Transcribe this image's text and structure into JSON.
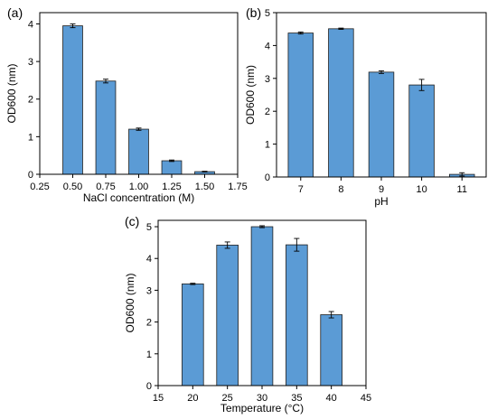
{
  "chart_data": [
    {
      "id": "a",
      "panel_label": "(a)",
      "type": "bar",
      "xlabel": "NaCl concentration (M)",
      "ylabel": "OD600 (nm)",
      "xlim": [
        0.25,
        1.75
      ],
      "ylim": [
        0,
        4.3
      ],
      "xticks": [
        "0.25",
        "0.50",
        "0.75",
        "1.00",
        "1.25",
        "1.50",
        "1.75"
      ],
      "yticks": [
        "0",
        "1",
        "2",
        "3",
        "4"
      ],
      "x": [
        0.5,
        0.75,
        1.0,
        1.25,
        1.5
      ],
      "values": [
        3.95,
        2.48,
        1.2,
        0.36,
        0.07
      ],
      "errors": [
        0.05,
        0.05,
        0.03,
        0.02,
        0.01
      ],
      "bar_width": 0.15,
      "bar_color": "#5b9bd5"
    },
    {
      "id": "b",
      "panel_label": "(b)",
      "type": "bar",
      "xlabel": "pH",
      "ylabel": "OD600 (nm)",
      "xlim": [
        6.4,
        11.6
      ],
      "ylim": [
        0,
        5
      ],
      "xticks": [
        "7",
        "8",
        "9",
        "10",
        "11"
      ],
      "yticks": [
        "0",
        "1",
        "2",
        "3",
        "4",
        "5"
      ],
      "x": [
        7,
        8,
        9,
        10,
        11
      ],
      "values": [
        4.38,
        4.51,
        3.19,
        2.8,
        0.08
      ],
      "errors": [
        0.03,
        0.02,
        0.04,
        0.17,
        0.05
      ],
      "bar_width": 0.62,
      "bar_color": "#5b9bd5"
    },
    {
      "id": "c",
      "panel_label": "(c)",
      "type": "bar",
      "xlabel": "Temperature (°C)",
      "ylabel": "OD600 (nm)",
      "xlim": [
        15,
        45
      ],
      "ylim": [
        0,
        5.2
      ],
      "xticks": [
        "15",
        "20",
        "25",
        "30",
        "35",
        "40",
        "45"
      ],
      "yticks": [
        "0",
        "1",
        "2",
        "3",
        "4",
        "5"
      ],
      "x": [
        20,
        25,
        30,
        35,
        40
      ],
      "values": [
        3.2,
        4.42,
        5.0,
        4.43,
        2.23
      ],
      "errors": [
        0.02,
        0.1,
        0.03,
        0.2,
        0.1
      ],
      "bar_width": 3.1,
      "bar_color": "#5b9bd5"
    }
  ]
}
